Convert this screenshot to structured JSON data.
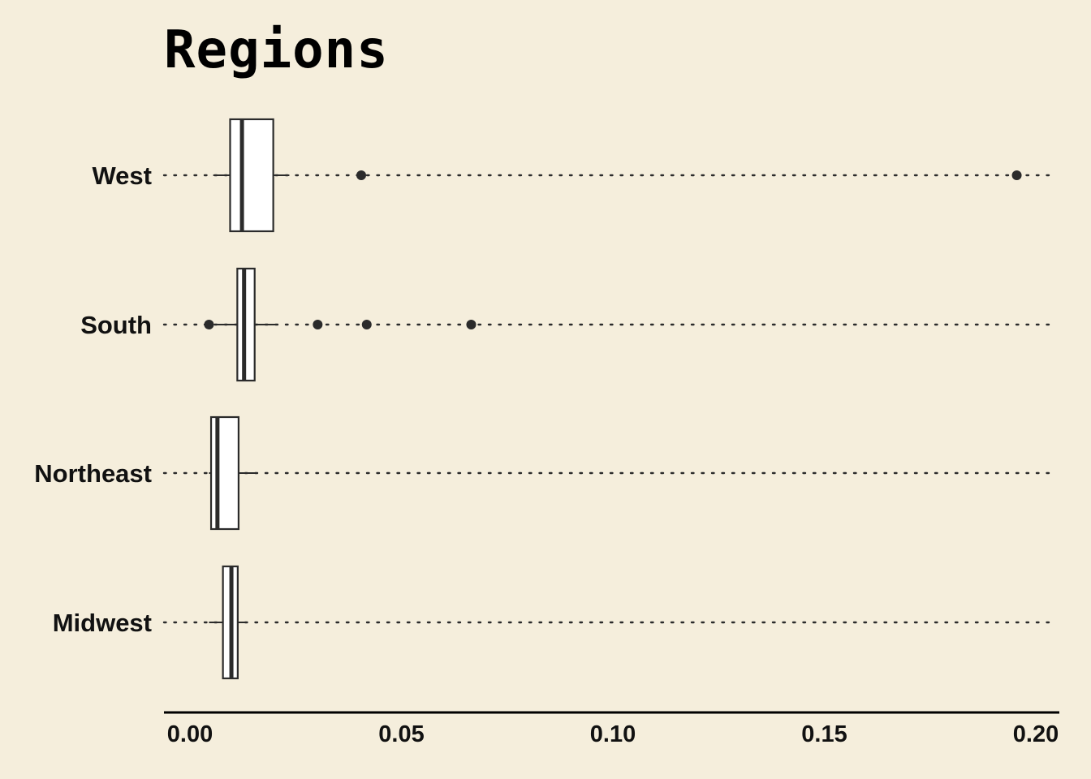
{
  "chart_data": {
    "type": "boxplot",
    "orientation": "horizontal",
    "title": "Regions",
    "xlabel": "",
    "ylabel": "",
    "xlim": [
      -0.006,
      0.205
    ],
    "xticks": [
      0.0,
      0.05,
      0.1,
      0.15,
      0.2
    ],
    "xtick_labels": [
      "0.00",
      "0.05",
      "0.10",
      "0.15",
      "0.20"
    ],
    "categories": [
      "West",
      "South",
      "Northeast",
      "Midwest"
    ],
    "boxes": [
      {
        "category": "West",
        "whisker_low": 0.0055,
        "q1": 0.0095,
        "median": 0.0123,
        "q3": 0.0197,
        "whisker_high": 0.0235,
        "outliers": [
          0.0405,
          0.1955
        ]
      },
      {
        "category": "South",
        "whisker_low": 0.0065,
        "q1": 0.0112,
        "median": 0.0128,
        "q3": 0.0153,
        "whisker_high": 0.0205,
        "outliers": [
          0.0045,
          0.0302,
          0.0418,
          0.0665
        ]
      },
      {
        "category": "Northeast",
        "whisker_low": 0.0045,
        "q1": 0.005,
        "median": 0.0065,
        "q3": 0.0115,
        "whisker_high": 0.0155,
        "outliers": []
      },
      {
        "category": "Midwest",
        "whisker_low": 0.0045,
        "q1": 0.0078,
        "median": 0.0098,
        "q3": 0.0113,
        "whisker_high": 0.0135,
        "outliers": []
      }
    ],
    "grid": "dotted horizontal line per category",
    "legend": "none",
    "colors": {
      "background": "#F5EEDC",
      "box_fill": "#FFFFFF",
      "stroke": "#2B2B2B"
    }
  }
}
